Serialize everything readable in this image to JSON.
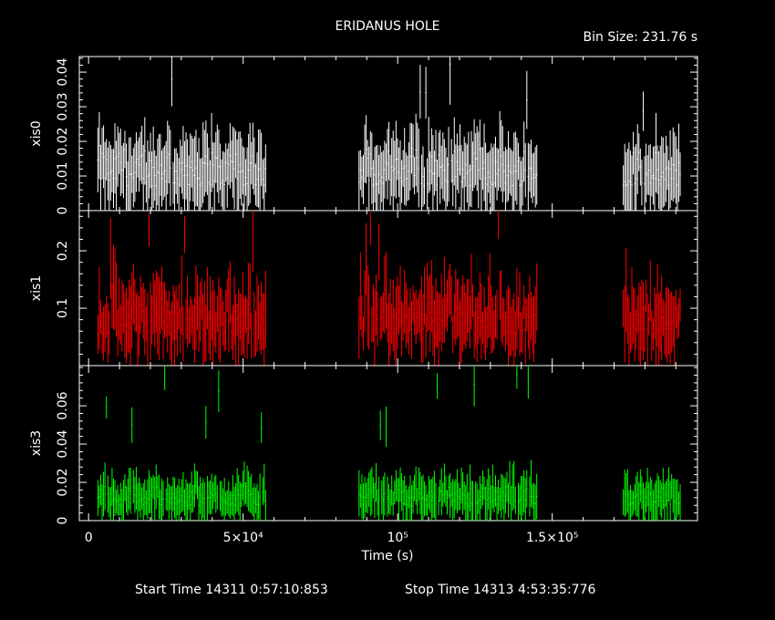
{
  "header": {
    "title": "ERIDANUS HOLE",
    "bin_size": "Bin Size: 231.76 s"
  },
  "footer": {
    "start_time": "Start Time 14311  0:57:10:853",
    "stop_time": "Stop Time 14313  4:53:35:776"
  },
  "colors": {
    "background": "#000000",
    "axes": "#ffffff",
    "xis0": "#ffffff",
    "xis1": "#ff0000",
    "xis3": "#00ff00"
  },
  "chart_data": {
    "type": "scatter",
    "style": "light curve with vertical error bars",
    "title": "ERIDANUS HOLE",
    "xlabel": "Time (s)",
    "xlim": [
      -3000,
      197000
    ],
    "x_ticks": [
      {
        "value": 0,
        "label": "0"
      },
      {
        "value": 50000,
        "label": "5×10⁴"
      },
      {
        "value": 100000,
        "label": "10⁵"
      },
      {
        "value": 150000,
        "label": "1.5×10⁵"
      }
    ],
    "bin_size_s": 231.76,
    "observation_segments": [
      [
        3000,
        57500
      ],
      [
        87500,
        145000
      ],
      [
        173000,
        191500
      ]
    ],
    "panels": [
      {
        "name": "xis0",
        "ylabel": "xis0",
        "color": "#ffffff",
        "ylim": [
          0,
          0.0445
        ],
        "y_ticks": [
          {
            "value": 0,
            "label": "0"
          },
          {
            "value": 0.01,
            "label": "0.01"
          },
          {
            "value": 0.02,
            "label": "0.02"
          },
          {
            "value": 0.03,
            "label": "0.03"
          },
          {
            "value": 0.04,
            "label": "0.04"
          }
        ],
        "mean_rate": 0.013,
        "peak_rate": 0.044
      },
      {
        "name": "xis1",
        "ylabel": "xis1",
        "color": "#ff0000",
        "ylim": [
          0.0,
          0.27
        ],
        "y_ticks": [
          {
            "value": 0.1,
            "label": "0.1"
          },
          {
            "value": 0.2,
            "label": "0.2"
          }
        ],
        "mean_rate": 0.095,
        "peak_rate": 0.27
      },
      {
        "name": "xis3",
        "ylabel": "xis3",
        "color": "#00ff00",
        "ylim": [
          0,
          0.081
        ],
        "y_ticks": [
          {
            "value": 0,
            "label": "0"
          },
          {
            "value": 0.02,
            "label": "0.02"
          },
          {
            "value": 0.04,
            "label": "0.04"
          },
          {
            "value": 0.06,
            "label": "0.06"
          }
        ],
        "mean_rate": 0.014,
        "peak_rate": 0.08
      }
    ]
  }
}
